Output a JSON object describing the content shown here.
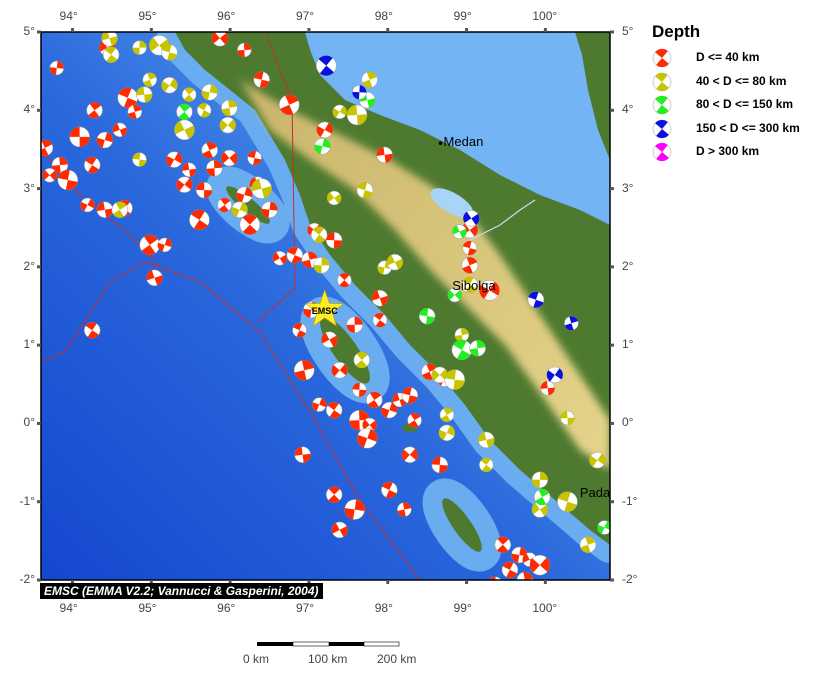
{
  "map": {
    "lon_range": [
      93.6,
      100.82
    ],
    "lat_range": [
      -2.0,
      5.0
    ],
    "lon_ticks": [
      94,
      95,
      96,
      97,
      98,
      99,
      100
    ],
    "lat_ticks": [
      5,
      4,
      3,
      2,
      1,
      0,
      -1,
      -2
    ],
    "lon_tick_labels": [
      "94°",
      "95°",
      "96°",
      "97°",
      "98°",
      "99°",
      "100°"
    ],
    "lat_tick_labels": [
      "5°",
      "4°",
      "3°",
      "2°",
      "1°",
      "0°",
      "-1°",
      "-2°"
    ],
    "cities": [
      {
        "name": "Medan",
        "lon": 98.67,
        "lat": 3.58,
        "dot": true
      },
      {
        "name": "Sibolga",
        "lon": 98.78,
        "lat": 1.74,
        "dot": false
      },
      {
        "name": "Padang",
        "lon": 100.4,
        "lat": -0.9,
        "dot": false
      }
    ],
    "star": {
      "label": "EMSC",
      "lon": 97.2,
      "lat": 1.45,
      "color": "#ffee22"
    },
    "credit": "EMSC (EMMA V2.2; Vannucci & Gasperini, 2004)"
  },
  "legend": {
    "title": "Depth",
    "items": [
      {
        "label": "D <= 40 km",
        "color": "#ff2a00"
      },
      {
        "label": "40 < D <= 80 km",
        "color": "#c8c400"
      },
      {
        "label": "80 < D <= 150 km",
        "color": "#22ee22"
      },
      {
        "label": "150 < D <= 300 km",
        "color": "#0a10e0"
      },
      {
        "label": "D > 300 km",
        "color": "#ff00ff"
      }
    ]
  },
  "scale_bar": {
    "labels": [
      "0 km",
      "100 km",
      "200 km"
    ]
  },
  "events": [
    [
      94.09,
      3.66,
      0
    ],
    [
      94.28,
      4.0,
      0
    ],
    [
      94.41,
      3.62,
      0
    ],
    [
      94.6,
      3.75,
      0
    ],
    [
      94.25,
      3.3,
      0
    ],
    [
      93.84,
      3.3,
      0
    ],
    [
      93.71,
      3.17,
      0
    ],
    [
      93.94,
      3.11,
      0
    ],
    [
      93.65,
      3.52,
      0
    ],
    [
      94.19,
      2.79,
      0
    ],
    [
      94.41,
      2.73,
      0
    ],
    [
      94.66,
      2.75,
      0
    ],
    [
      93.8,
      4.54,
      0
    ],
    [
      94.44,
      4.8,
      0
    ],
    [
      94.7,
      4.16,
      0
    ],
    [
      94.79,
      3.98,
      0
    ],
    [
      95.42,
      3.05,
      0
    ],
    [
      95.67,
      2.98,
      0
    ],
    [
      95.93,
      2.79,
      0
    ],
    [
      96.18,
      2.92,
      0
    ],
    [
      96.35,
      3.05,
      0
    ],
    [
      95.61,
      2.6,
      0
    ],
    [
      95.8,
      3.26,
      0
    ],
    [
      95.99,
      3.39,
      0
    ],
    [
      96.31,
      3.39,
      0
    ],
    [
      95.74,
      3.49,
      0
    ],
    [
      95.29,
      3.37,
      0
    ],
    [
      95.48,
      3.24,
      0
    ],
    [
      96.25,
      2.54,
      0
    ],
    [
      96.5,
      2.73,
      0
    ],
    [
      96.63,
      2.11,
      0
    ],
    [
      96.82,
      2.15,
      0
    ],
    [
      97.01,
      2.09,
      0
    ],
    [
      97.07,
      2.47,
      0
    ],
    [
      97.32,
      2.34,
      0
    ],
    [
      94.98,
      2.28,
      0
    ],
    [
      95.17,
      2.28,
      0
    ],
    [
      95.04,
      1.86,
      0
    ],
    [
      94.25,
      1.19,
      0
    ],
    [
      96.18,
      4.77,
      0
    ],
    [
      95.87,
      4.92,
      0
    ],
    [
      96.4,
      4.39,
      0
    ],
    [
      96.75,
      4.07,
      0
    ],
    [
      97.2,
      3.75,
      0
    ],
    [
      97.96,
      3.43,
      0
    ],
    [
      97.45,
      1.83,
      0
    ],
    [
      97.03,
      1.45,
      0
    ],
    [
      97.26,
      1.07,
      0
    ],
    [
      96.88,
      1.19,
      0
    ],
    [
      96.94,
      0.68,
      0
    ],
    [
      97.39,
      0.68,
      0
    ],
    [
      97.64,
      0.43,
      0
    ],
    [
      97.83,
      0.3,
      0
    ],
    [
      98.02,
      0.17,
      0
    ],
    [
      98.15,
      0.3,
      0
    ],
    [
      97.32,
      0.17,
      0
    ],
    [
      97.64,
      0.04,
      0
    ],
    [
      97.77,
      -0.02,
      0
    ],
    [
      98.28,
      0.36,
      0
    ],
    [
      98.53,
      0.66,
      0
    ],
    [
      98.72,
      0.56,
      0
    ],
    [
      96.92,
      -0.4,
      0
    ],
    [
      97.32,
      -0.91,
      0
    ],
    [
      97.58,
      -1.1,
      0
    ],
    [
      97.39,
      -1.36,
      0
    ],
    [
      98.02,
      -0.85,
      0
    ],
    [
      98.21,
      -1.1,
      0
    ],
    [
      98.28,
      -0.4,
      0
    ],
    [
      98.66,
      -0.53,
      0
    ],
    [
      98.34,
      0.04,
      0
    ],
    [
      97.74,
      -0.19,
      0
    ],
    [
      97.9,
      1.6,
      0
    ],
    [
      97.9,
      1.32,
      0
    ],
    [
      97.58,
      1.26,
      0
    ],
    [
      99.04,
      2.47,
      0
    ],
    [
      99.04,
      2.24,
      0
    ],
    [
      99.04,
      2.02,
      0
    ],
    [
      99.29,
      1.7,
      0
    ],
    [
      100.03,
      0.45,
      0
    ],
    [
      99.46,
      -1.55,
      0
    ],
    [
      99.67,
      -1.68,
      0
    ],
    [
      99.8,
      -1.74,
      0
    ],
    [
      99.55,
      -1.87,
      0
    ],
    [
      99.74,
      -2.0,
      0
    ],
    [
      99.93,
      -1.81,
      0
    ],
    [
      99.36,
      -2.06,
      0
    ],
    [
      99.61,
      -2.19,
      0
    ],
    [
      97.13,
      0.24,
      0
    ],
    [
      94.47,
      4.92,
      1
    ],
    [
      94.49,
      4.71,
      1
    ],
    [
      94.85,
      4.8,
      1
    ],
    [
      95.1,
      4.83,
      1
    ],
    [
      95.23,
      4.74,
      1
    ],
    [
      94.98,
      4.39,
      1
    ],
    [
      95.23,
      4.32,
      1
    ],
    [
      94.91,
      4.2,
      1
    ],
    [
      95.48,
      4.2,
      1
    ],
    [
      95.74,
      4.23,
      1
    ],
    [
      95.42,
      3.75,
      1
    ],
    [
      95.67,
      4.0,
      1
    ],
    [
      95.99,
      4.03,
      1
    ],
    [
      95.97,
      3.81,
      1
    ],
    [
      94.85,
      3.37,
      1
    ],
    [
      94.6,
      2.73,
      1
    ],
    [
      96.12,
      2.73,
      1
    ],
    [
      96.4,
      3.0,
      1
    ],
    [
      97.13,
      2.41,
      1
    ],
    [
      97.16,
      2.02,
      1
    ],
    [
      97.32,
      2.88,
      1
    ],
    [
      97.71,
      2.98,
      1
    ],
    [
      97.77,
      4.39,
      1
    ],
    [
      97.39,
      3.98,
      1
    ],
    [
      97.61,
      3.94,
      1
    ],
    [
      97.67,
      0.81,
      1
    ],
    [
      97.96,
      1.99,
      1
    ],
    [
      98.09,
      2.06,
      1
    ],
    [
      99.04,
      1.77,
      1
    ],
    [
      98.94,
      1.13,
      1
    ],
    [
      98.66,
      0.62,
      1
    ],
    [
      98.85,
      0.56,
      1
    ],
    [
      98.75,
      0.11,
      1
    ],
    [
      98.75,
      -0.12,
      1
    ],
    [
      99.25,
      -0.21,
      1
    ],
    [
      99.25,
      -0.53,
      1
    ],
    [
      99.93,
      -0.72,
      1
    ],
    [
      99.93,
      -1.1,
      1
    ],
    [
      100.28,
      -1.0,
      1
    ],
    [
      100.54,
      -1.55,
      1
    ],
    [
      100.66,
      -0.47,
      1
    ],
    [
      100.28,
      0.07,
      1
    ],
    [
      95.42,
      3.98,
      2
    ],
    [
      97.17,
      3.54,
      2
    ],
    [
      98.91,
      2.45,
      2
    ],
    [
      98.94,
      0.94,
      2
    ],
    [
      99.14,
      0.96,
      2
    ],
    [
      98.85,
      1.64,
      2
    ],
    [
      98.5,
      1.37,
      2
    ],
    [
      99.96,
      -0.94,
      2
    ],
    [
      100.75,
      -1.33,
      2
    ],
    [
      97.74,
      4.13,
      2
    ],
    [
      97.22,
      4.57,
      3
    ],
    [
      97.64,
      4.23,
      3
    ],
    [
      99.06,
      2.62,
      3
    ],
    [
      99.88,
      1.58,
      3
    ],
    [
      100.33,
      1.28,
      3
    ],
    [
      100.12,
      0.62,
      3
    ]
  ]
}
